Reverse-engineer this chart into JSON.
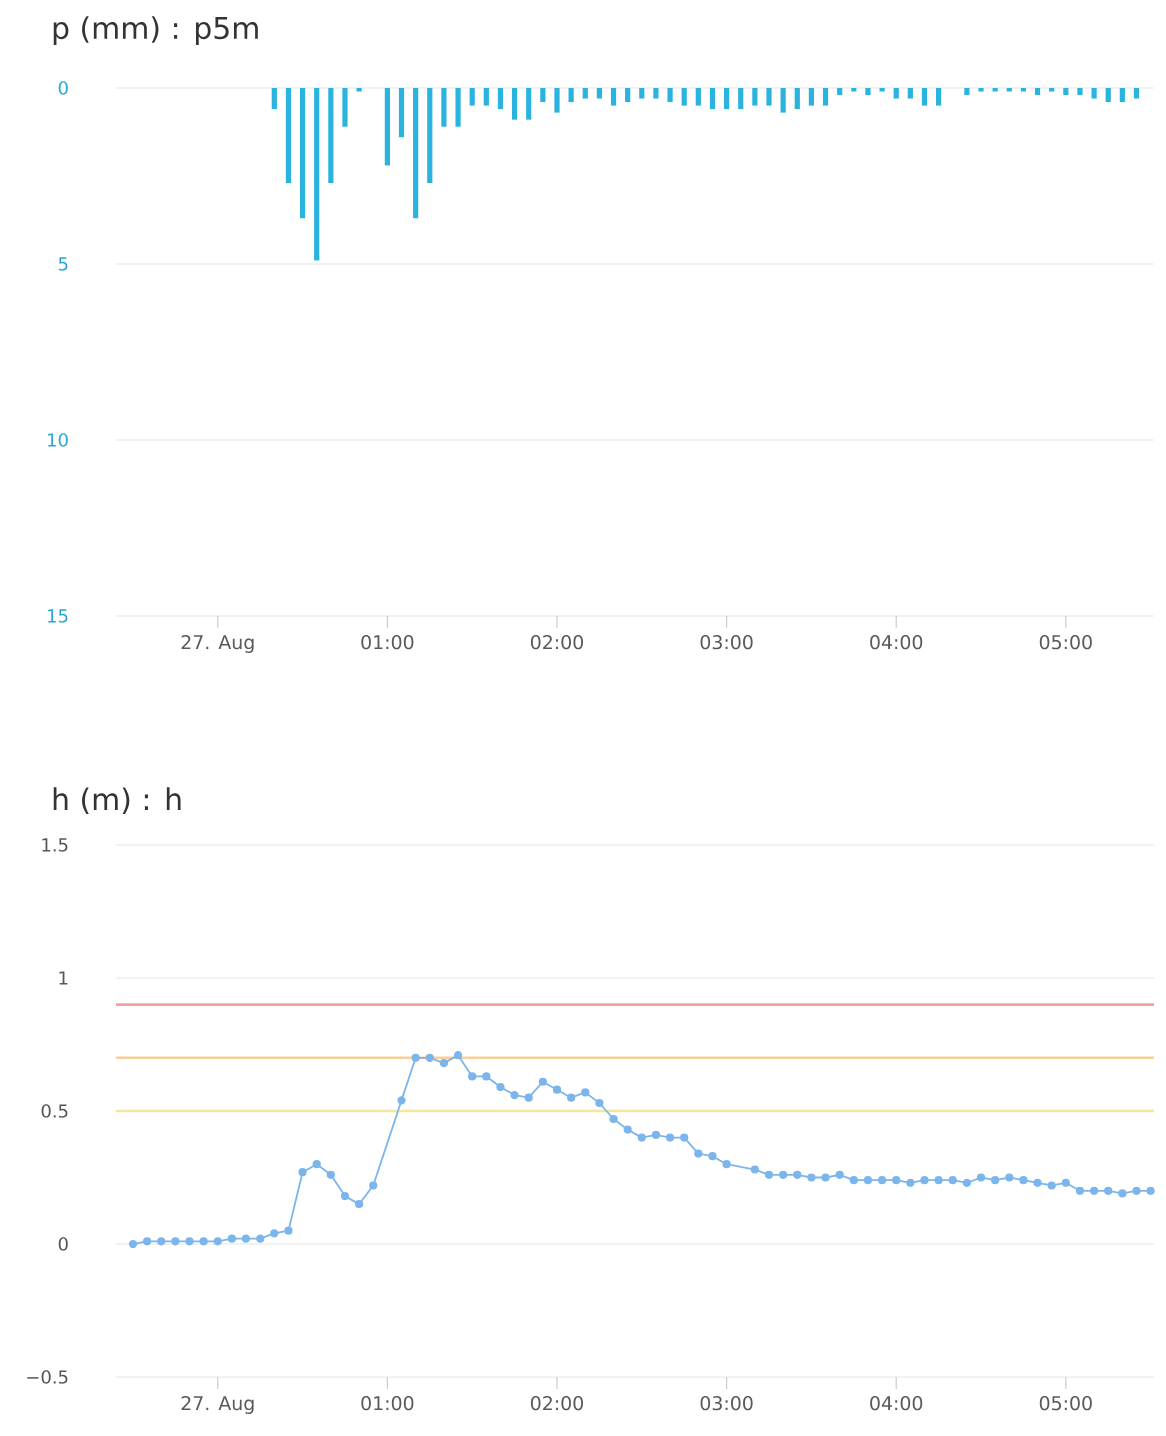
{
  "chart_data": [
    {
      "type": "bar",
      "title": "p (mm) : p5m",
      "x": [
        0.3333,
        0.4167,
        0.5,
        0.5833,
        0.6667,
        0.75,
        0.8333,
        1.0,
        1.0833,
        1.1667,
        1.25,
        1.3333,
        1.4167,
        1.5,
        1.5833,
        1.6667,
        1.75,
        1.8333,
        1.9167,
        2.0,
        2.0833,
        2.1667,
        2.25,
        2.3333,
        2.4167,
        2.5,
        2.5833,
        2.6667,
        2.75,
        2.8333,
        2.9167,
        3.0,
        3.0833,
        3.1667,
        3.25,
        3.3333,
        3.4167,
        3.5,
        3.5833,
        3.6667,
        3.75,
        3.8333,
        3.9167,
        4.0,
        4.0833,
        4.1667,
        4.25,
        4.4167,
        4.5,
        4.5833,
        4.6667,
        4.75,
        4.8333,
        4.9167,
        5.0,
        5.0833,
        5.1667,
        5.25,
        5.3333,
        5.4167
      ],
      "values": [
        0.6,
        2.7,
        3.7,
        4.9,
        2.7,
        1.1,
        0.1,
        2.2,
        1.4,
        3.7,
        2.7,
        1.1,
        1.1,
        0.5,
        0.5,
        0.6,
        0.9,
        0.9,
        0.4,
        0.7,
        0.4,
        0.3,
        0.3,
        0.5,
        0.4,
        0.3,
        0.3,
        0.4,
        0.5,
        0.5,
        0.6,
        0.6,
        0.6,
        0.5,
        0.5,
        0.7,
        0.6,
        0.5,
        0.5,
        0.2,
        0.1,
        0.2,
        0.1,
        0.3,
        0.3,
        0.5,
        0.5,
        0.2,
        0.1,
        0.1,
        0.1,
        0.1,
        0.2,
        0.1,
        0.2,
        0.2,
        0.3,
        0.4,
        0.4,
        0.3
      ],
      "color": "#2bb3e0",
      "xlim": [
        -0.6,
        5.52
      ],
      "xticks": [
        {
          "value": 0,
          "label": "27. Aug"
        },
        {
          "value": 1,
          "label": "01:00"
        },
        {
          "value": 2,
          "label": "02:00"
        },
        {
          "value": 3,
          "label": "03:00"
        },
        {
          "value": 4,
          "label": "04:00"
        },
        {
          "value": 5,
          "label": "05:00"
        }
      ],
      "ylim": [
        15,
        0
      ],
      "yticks": [
        0,
        5,
        10,
        15
      ],
      "grid": "y"
    },
    {
      "type": "line",
      "title": "h (m) : h",
      "x": [
        -0.5,
        -0.4167,
        -0.3333,
        -0.25,
        -0.1667,
        -0.0833,
        0,
        0.0833,
        0.1667,
        0.25,
        0.3333,
        0.4167,
        0.5,
        0.5833,
        0.6667,
        0.75,
        0.8333,
        0.9167,
        1.0833,
        1.1667,
        1.25,
        1.3333,
        1.4167,
        1.5,
        1.5833,
        1.6667,
        1.75,
        1.8333,
        1.9167,
        2.0,
        2.0833,
        2.1667,
        2.25,
        2.3333,
        2.4167,
        2.5,
        2.5833,
        2.6667,
        2.75,
        2.8333,
        2.9167,
        3.0,
        3.1667,
        3.25,
        3.3333,
        3.4167,
        3.5,
        3.5833,
        3.6667,
        3.75,
        3.8333,
        3.9167,
        4.0,
        4.0833,
        4.1667,
        4.25,
        4.3333,
        4.4167,
        4.5,
        4.5833,
        4.6667,
        4.75,
        4.8333,
        4.9167,
        5.0,
        5.0833,
        5.1667,
        5.25,
        5.3333,
        5.4167,
        5.5
      ],
      "values": [
        0,
        0.01,
        0.01,
        0.01,
        0.01,
        0.01,
        0.01,
        0.02,
        0.02,
        0.02,
        0.04,
        0.05,
        0.27,
        0.3,
        0.26,
        0.18,
        0.15,
        0.22,
        0.54,
        0.7,
        0.7,
        0.68,
        0.71,
        0.63,
        0.63,
        0.59,
        0.56,
        0.55,
        0.61,
        0.58,
        0.55,
        0.57,
        0.53,
        0.47,
        0.43,
        0.4,
        0.41,
        0.4,
        0.4,
        0.34,
        0.33,
        0.3,
        0.28,
        0.26,
        0.26,
        0.26,
        0.25,
        0.25,
        0.26,
        0.24,
        0.24,
        0.24,
        0.24,
        0.23,
        0.24,
        0.24,
        0.24,
        0.23,
        0.25,
        0.24,
        0.25,
        0.24,
        0.23,
        0.22,
        0.23,
        0.2,
        0.2,
        0.2,
        0.19,
        0.2,
        0.2
      ],
      "color": "#7cb5ec",
      "marker": "circle",
      "xlim": [
        -0.6,
        5.52
      ],
      "xticks": [
        {
          "value": 0,
          "label": "27. Aug"
        },
        {
          "value": 1,
          "label": "01:00"
        },
        {
          "value": 2,
          "label": "02:00"
        },
        {
          "value": 3,
          "label": "03:00"
        },
        {
          "value": 4,
          "label": "04:00"
        },
        {
          "value": 5,
          "label": "05:00"
        }
      ],
      "ylim": [
        -0.5,
        1.5
      ],
      "yticks": [
        {
          "value": -0.5,
          "label": "−0.5"
        },
        0,
        0.5,
        1,
        1.5
      ],
      "grid": "y",
      "ref_lines": [
        {
          "axis": "y",
          "value": 0.9,
          "color": "#f2a0a0"
        },
        {
          "axis": "y",
          "value": 0.7,
          "color": "#f9d09c"
        },
        {
          "axis": "y",
          "value": 0.5,
          "color": "#f5e5a0"
        }
      ]
    }
  ]
}
